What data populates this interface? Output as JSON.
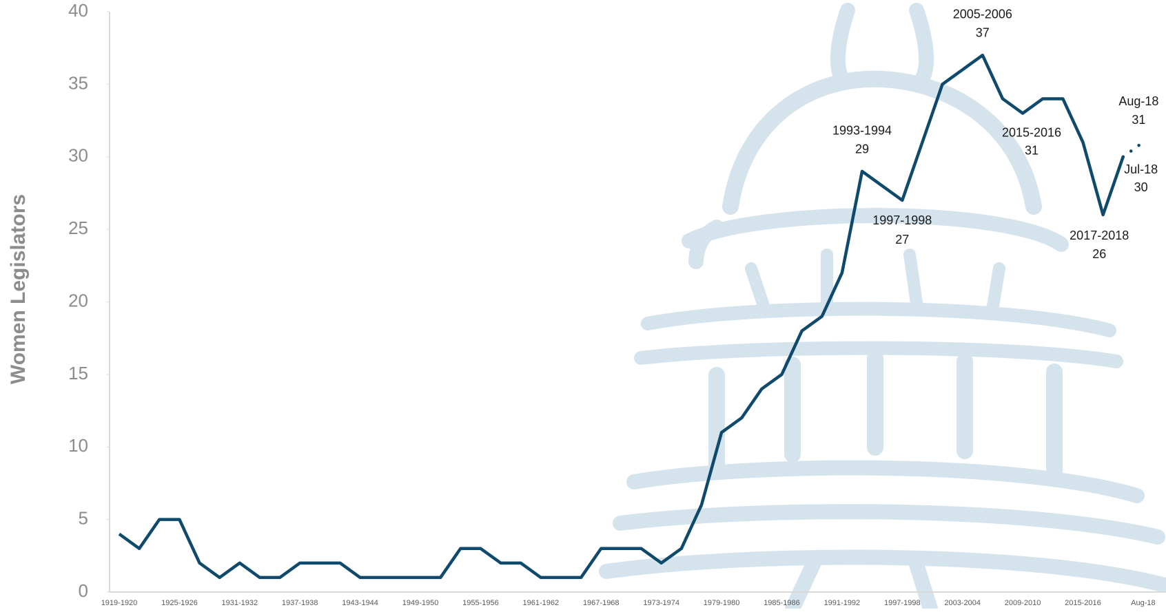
{
  "chart_data": {
    "type": "line",
    "y_label": "Women Legislators",
    "categories": [
      "1919-1920",
      null,
      null,
      "1925-1926",
      null,
      null,
      "1931-1932",
      null,
      null,
      "1937-1938",
      null,
      null,
      "1943-1944",
      null,
      null,
      "1949-1950",
      null,
      null,
      "1955-1956",
      null,
      null,
      "1961-1962",
      null,
      null,
      "1967-1968",
      null,
      null,
      "1973-1974",
      null,
      null,
      "1979-1980",
      null,
      null,
      "1985-1986",
      null,
      null,
      "1991-1992",
      null,
      null,
      "1997-1998",
      null,
      null,
      "2003-2004",
      null,
      null,
      "2009-2010",
      null,
      null,
      "2015-2016",
      null,
      null,
      "Aug-18"
    ],
    "values": [
      4,
      3,
      5,
      5,
      2,
      1,
      2,
      1,
      1,
      2,
      2,
      2,
      1,
      1,
      1,
      1,
      1,
      3,
      3,
      2,
      2,
      1,
      1,
      1,
      3,
      3,
      3,
      2,
      3,
      6,
      11,
      12,
      14,
      15,
      18,
      19,
      22,
      29,
      28,
      27,
      31,
      35,
      36,
      37,
      34,
      33,
      34,
      34,
      31,
      26,
      30,
      31
    ],
    "color": "#0f4a6c",
    "ylim": [
      0,
      40
    ],
    "yticks": [
      0,
      5,
      10,
      15,
      20,
      25,
      30,
      35,
      40
    ],
    "grid": false,
    "annotations": [
      {
        "label": "1993-1994",
        "value": 29
      },
      {
        "label": "1997-1998",
        "value": 27
      },
      {
        "label": "2005-2006",
        "value": 37
      },
      {
        "label": "2015-2016",
        "value": 31
      },
      {
        "label": "2017-2018",
        "value": 26
      },
      {
        "label": "Jul-18",
        "value": 30
      },
      {
        "label": "Aug-18",
        "value": 31
      }
    ]
  }
}
